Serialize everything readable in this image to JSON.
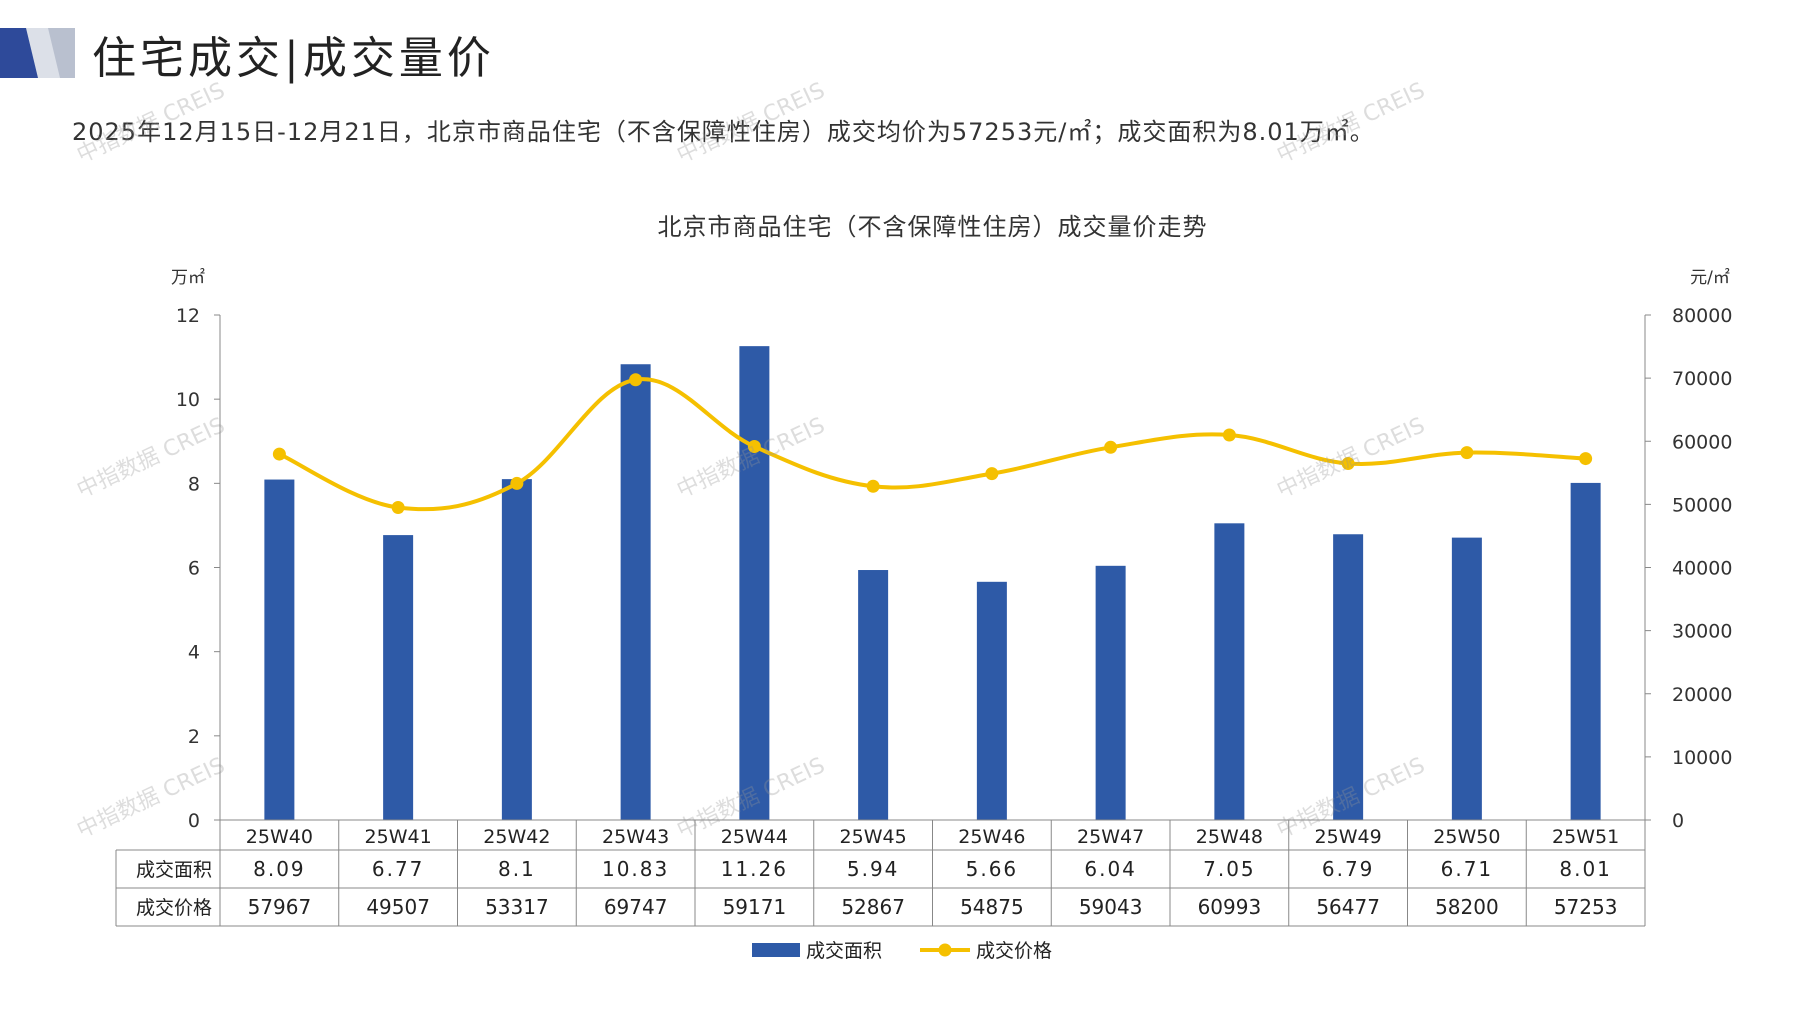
{
  "page_title": "住宅成交|成交量价",
  "summary_text": "2025年12月15日-12月21日，北京市商品住宅（不含保障性住房）成交均价为57253元/㎡；成交面积为8.01万㎡。",
  "watermark": "中指数据 CREIS",
  "colors": {
    "bar": "#2E5AA7",
    "line": "#F5C000",
    "accent_dark": "#2E4A9A",
    "accent_light": "#B9C0CF"
  },
  "chart_data": {
    "type": "bar+line",
    "title": "北京市商品住宅（不含保障性住房）成交量价走势",
    "categories": [
      "25W40",
      "25W41",
      "25W42",
      "25W43",
      "25W44",
      "25W45",
      "25W46",
      "25W47",
      "25W48",
      "25W49",
      "25W50",
      "25W51"
    ],
    "series": [
      {
        "name": "成交面积",
        "type": "bar",
        "axis": "left",
        "values": [
          8.09,
          6.77,
          8.1,
          10.83,
          11.26,
          5.94,
          5.66,
          6.04,
          7.05,
          6.79,
          6.71,
          8.01
        ],
        "value_labels": [
          "8.09",
          "6.77",
          "8.1",
          "10.83",
          "11.26",
          "5.94",
          "5.66",
          "6.04",
          "7.05",
          "6.79",
          "6.71",
          "8.01"
        ]
      },
      {
        "name": "成交价格",
        "type": "line",
        "axis": "right",
        "values": [
          57967,
          49507,
          53317,
          69747,
          59171,
          52867,
          54875,
          59043,
          60993,
          56477,
          58200,
          57253
        ],
        "value_labels": [
          "57967",
          "49507",
          "53317",
          "69747",
          "59171",
          "52867",
          "54875",
          "59043",
          "60993",
          "56477",
          "58200",
          "57253"
        ]
      }
    ],
    "y_left": {
      "label": "万㎡",
      "min": 0,
      "max": 12,
      "ticks": [
        "0",
        "2",
        "4",
        "6",
        "8",
        "10",
        "12"
      ]
    },
    "y_right": {
      "label": "元/㎡",
      "min": 0,
      "max": 80000,
      "ticks": [
        "0",
        "10000",
        "20000",
        "30000",
        "40000",
        "50000",
        "60000",
        "70000",
        "80000"
      ]
    },
    "legend": [
      "成交面积",
      "成交价格"
    ],
    "legend_position": "bottom-center",
    "data_table": true
  }
}
